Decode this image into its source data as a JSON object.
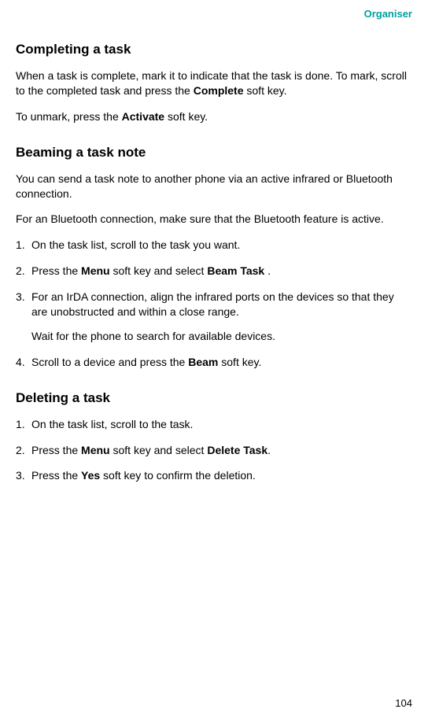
{
  "header": {
    "label": "Organiser",
    "color": "#00a0a0"
  },
  "sections": {
    "completing": {
      "heading": "Completing a task",
      "para1_a": "When a task is complete, mark it to indicate that the task is done. To mark, scroll to the completed task and press the ",
      "para1_bold": "Complete",
      "para1_b": " soft key.",
      "para2_a": "To unmark, press the ",
      "para2_bold": "Activate",
      "para2_b": " soft key."
    },
    "beaming": {
      "heading": "Beaming a task note",
      "para1": "You can send a task note to another phone via an active infrared or Bluetooth connection.",
      "para2": "For an Bluetooth connection, make sure that the Bluetooth feature is active.",
      "step1": "On the task list, scroll to the task you want.",
      "step2_a": "Press the ",
      "step2_bold1": "Menu",
      "step2_b": " soft key and select ",
      "step2_bold2": "Beam Task",
      "step2_c": " .",
      "step3_main": "For an IrDA connection, align the infrared ports on the devices so that they are unobstructed and within a close range.",
      "step3_sub": "Wait for the phone to search for available devices.",
      "step4_a": "Scroll to a device and press the ",
      "step4_bold": "Beam",
      "step4_b": " soft key."
    },
    "deleting": {
      "heading": "Deleting a task",
      "step1": "On the task list, scroll to the task.",
      "step2_a": "Press the ",
      "step2_bold1": "Menu",
      "step2_b": " soft key and select ",
      "step2_bold2": "Delete Task",
      "step2_c": ".",
      "step3_a": "Press the ",
      "step3_bold": "Yes",
      "step3_b": " soft key to confirm the deletion."
    }
  },
  "page_number": "104"
}
